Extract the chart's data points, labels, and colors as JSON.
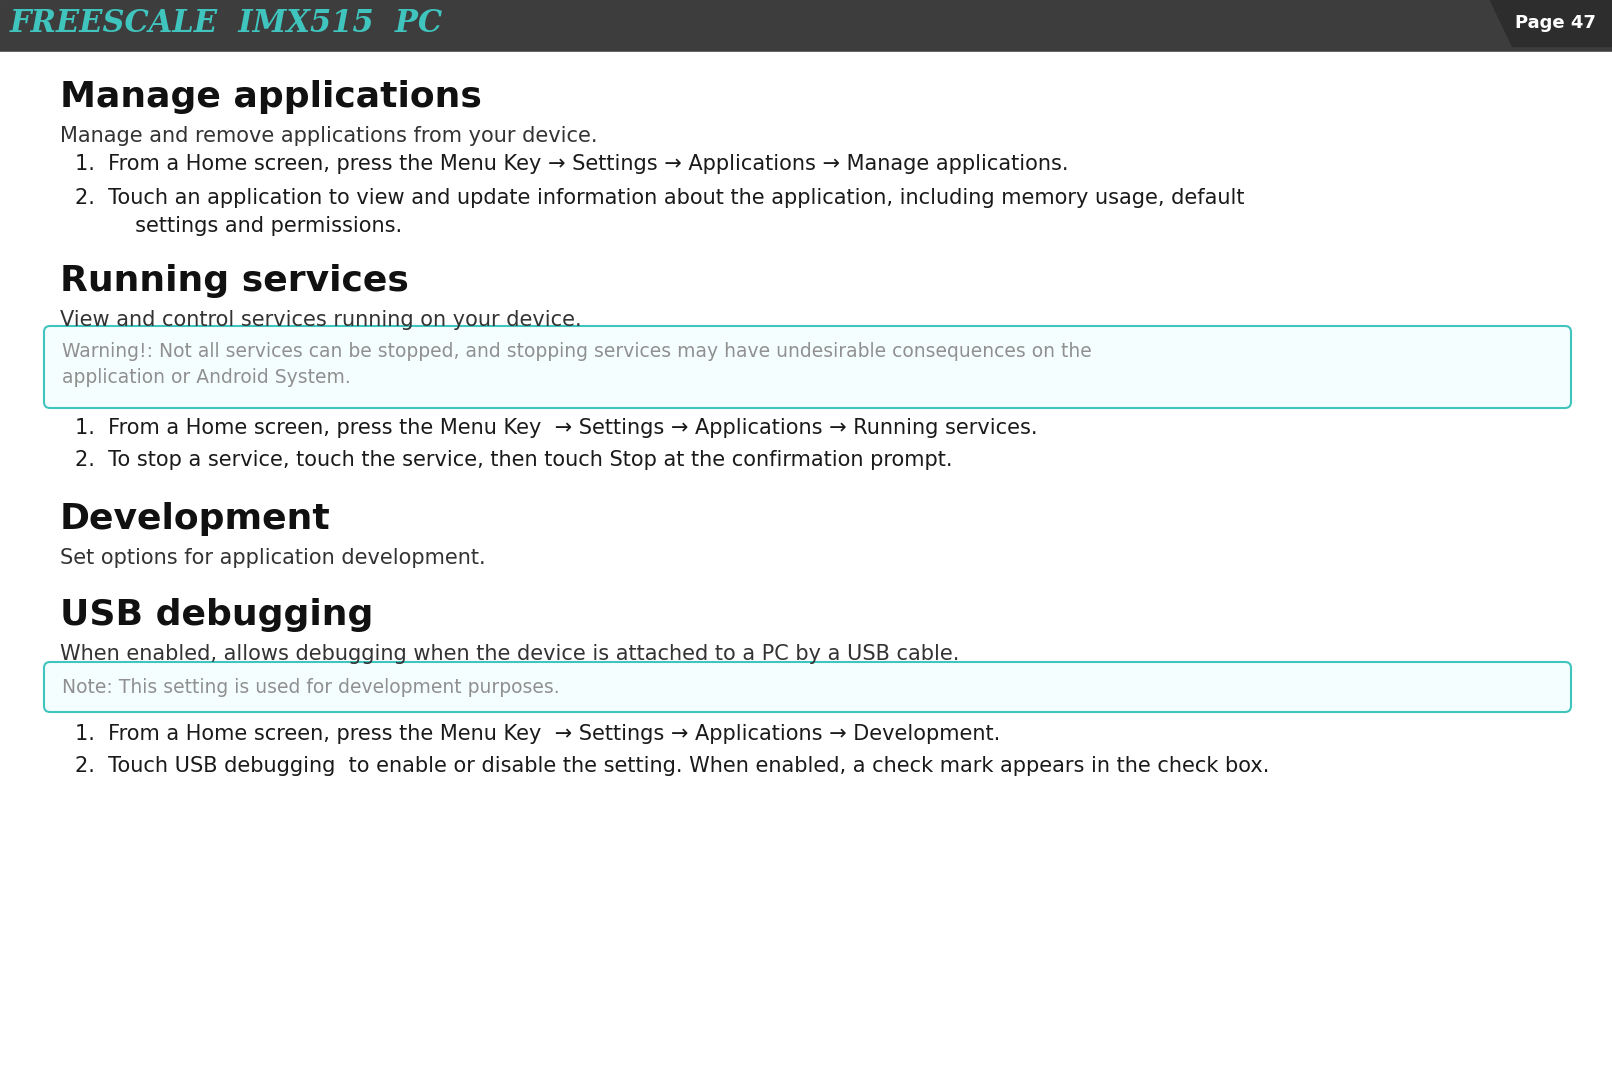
{
  "bg_color": "#ffffff",
  "header_bg": "#3d3d3d",
  "header_text": "FREESCALE  IMX515  PC",
  "header_text_color": "#40c4be",
  "header_page": "Page 47",
  "header_page_color": "#ffffff",
  "header_line_color": "#3d3d3d",
  "section1_title": "Manage applications",
  "section1_desc": "Manage and remove applications from your device.",
  "section1_item1": "1.  From a Home screen, press the Menu Key → Settings → Applications → Manage applications.",
  "section1_item2a": "2.  Touch an application to view and update information about the application, including memory usage, default",
  "section1_item2b": "     settings and permissions.",
  "section2_title": "Running services",
  "section2_desc": "View and control services running on your device.",
  "section2_warn1": "Warning!: Not all services can be stopped, and stopping services may have undesirable consequences on the",
  "section2_warn2": "application or Android System.",
  "section2_item1": "1.  From a Home screen, press the Menu Key  → Settings → Applications → Running services.",
  "section2_item2": "2.  To stop a service, touch the service, then touch Stop at the confirmation prompt.",
  "section3_title": "Development",
  "section3_desc": "Set options for application development.",
  "section4_title": "USB debugging",
  "section4_desc": "When enabled, allows debugging when the device is attached to a PC by a USB cable.",
  "section4_note": "Note: This setting is used for development purposes.",
  "section4_item1": "1.  From a Home screen, press the Menu Key  → Settings → Applications → Development.",
  "section4_item2": "2.  Touch USB debugging  to enable or disable the setting. When enabled, a check mark appears in the check box.",
  "warning_border_color": "#40c4be",
  "warning_bg_color": "#f5fefe",
  "warning_text_color": "#909090",
  "note_border_color": "#40c4be",
  "note_bg_color": "#f5fefe",
  "note_text_color": "#909090",
  "body_text_color": "#1a1a1a",
  "title_text_color": "#111111",
  "desc_text_color": "#333333"
}
